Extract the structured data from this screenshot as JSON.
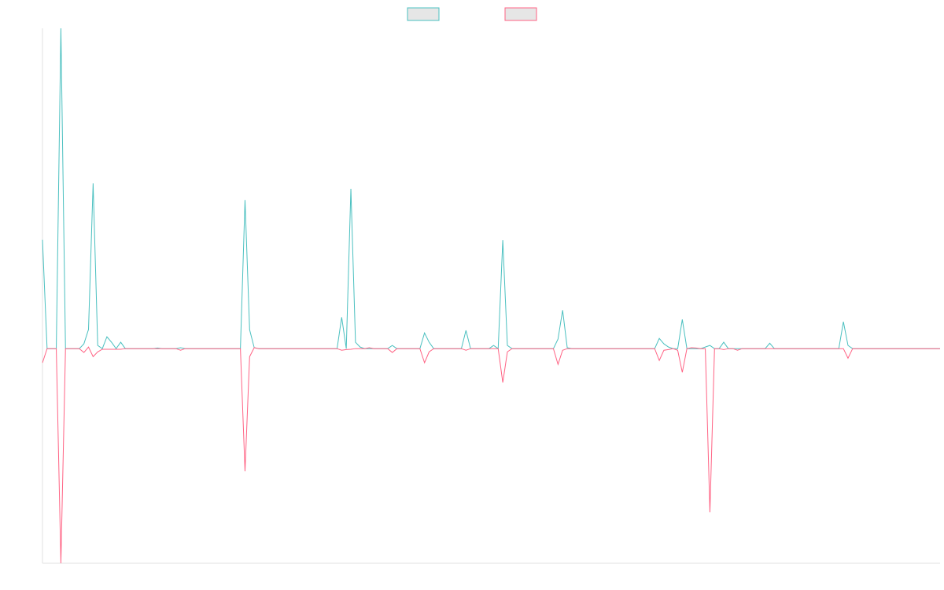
{
  "chart_data": {
    "type": "line",
    "legend": "top",
    "grid": false,
    "xlim": [
      0,
      195
    ],
    "ylim": [
      -67,
      100
    ],
    "x": [
      0,
      1,
      2,
      3,
      4,
      5,
      6,
      7,
      8,
      9,
      10,
      11,
      12,
      13,
      14,
      15,
      16,
      17,
      18,
      19,
      20,
      21,
      22,
      23,
      24,
      25,
      26,
      27,
      28,
      29,
      30,
      31,
      32,
      33,
      34,
      35,
      36,
      37,
      38,
      39,
      40,
      41,
      42,
      43,
      44,
      45,
      46,
      47,
      48,
      49,
      50,
      51,
      52,
      53,
      54,
      55,
      56,
      57,
      58,
      59,
      60,
      61,
      62,
      63,
      64,
      65,
      66,
      67,
      68,
      69,
      70,
      71,
      72,
      73,
      74,
      75,
      76,
      77,
      78,
      79,
      80,
      81,
      82,
      83,
      84,
      85,
      86,
      87,
      88,
      89,
      90,
      91,
      92,
      93,
      94,
      95,
      96,
      97,
      98,
      99,
      100,
      101,
      102,
      103,
      104,
      105,
      106,
      107,
      108,
      109,
      110,
      111,
      112,
      113,
      114,
      115,
      116,
      117,
      118,
      119,
      120,
      121,
      122,
      123,
      124,
      125,
      126,
      127,
      128,
      129,
      130,
      131,
      132,
      133,
      134,
      135,
      136,
      137,
      138,
      139,
      140,
      141,
      142,
      143,
      144,
      145,
      146,
      147,
      148,
      149,
      150,
      151,
      152,
      153,
      154,
      155,
      156,
      157,
      158,
      159,
      160,
      161,
      162,
      163,
      164,
      165,
      166,
      167,
      168,
      169,
      170,
      171,
      172,
      173,
      174,
      175,
      176,
      177,
      178,
      179,
      180,
      181,
      182,
      183,
      184,
      185,
      186,
      187,
      188,
      189,
      190,
      191,
      192,
      193,
      194,
      195
    ],
    "series": [
      {
        "color": "#4bc0c0",
        "values": [
          34,
          0,
          0,
          0,
          100,
          0,
          0,
          0,
          0,
          1.5,
          6,
          51.6,
          1,
          0,
          3.7,
          2,
          0,
          2,
          0,
          0,
          0,
          0,
          0,
          0,
          0,
          0.2,
          0,
          0,
          0,
          0,
          0.3,
          0,
          0,
          0,
          0,
          0,
          0,
          0,
          0,
          0,
          0,
          0,
          0,
          0,
          46.4,
          5.9,
          0.3,
          0,
          0,
          0,
          0,
          0,
          0,
          0,
          0,
          0,
          0,
          0,
          0,
          0,
          0,
          0,
          0,
          0,
          0,
          9.8,
          0,
          49.9,
          2,
          0.5,
          0,
          0,
          0,
          0,
          0,
          0,
          1,
          0,
          0,
          0,
          0,
          0,
          0,
          4.9,
          2,
          0,
          0,
          0,
          0,
          0,
          0,
          0,
          5.7,
          0,
          0,
          0,
          0,
          0,
          1,
          0,
          33.9,
          1,
          0,
          0,
          0,
          0,
          0,
          0,
          0,
          0,
          0,
          0,
          3,
          12,
          0.3,
          0,
          0,
          0,
          0,
          0,
          0,
          0,
          0,
          0,
          0,
          0,
          0,
          0,
          0,
          0,
          0,
          0,
          0,
          0,
          3.2,
          1.5,
          0.5,
          0,
          0,
          9.1,
          0,
          0,
          0,
          0,
          0.5,
          1,
          0,
          0,
          2,
          0,
          0,
          0,
          0,
          0,
          0,
          0,
          0,
          0,
          1.7,
          0,
          0,
          0,
          0,
          0,
          0,
          0,
          0,
          0,
          0,
          0,
          0,
          0,
          0,
          0,
          8.4,
          1,
          0,
          0,
          0,
          0,
          0,
          0,
          0,
          0,
          0,
          0,
          0,
          0,
          0,
          0,
          0,
          0,
          0,
          0,
          0,
          0
        ]
      },
      {
        "color": "#ff6384",
        "values": [
          -4.4,
          0,
          0,
          0,
          -67,
          0,
          0,
          0,
          0,
          -1.2,
          0.5,
          -2.5,
          -1,
          -0.2,
          -0.2,
          -0.2,
          -0.2,
          -0.2,
          0,
          0,
          0,
          0,
          0,
          0,
          0,
          0,
          0,
          0,
          0,
          0,
          -0.5,
          0,
          0,
          0,
          0,
          0,
          0,
          0,
          0,
          0,
          0,
          0,
          0,
          0,
          -38.3,
          -2.5,
          0.3,
          0,
          0,
          0,
          0,
          0,
          0,
          0,
          0,
          0,
          0,
          0,
          0,
          0,
          0,
          0,
          0,
          0,
          0,
          -0.5,
          -0.3,
          -0.2,
          0,
          0,
          0,
          0.3,
          0,
          0,
          0,
          0,
          -1.2,
          0,
          0,
          0,
          0,
          0,
          0,
          -4.4,
          -1,
          0,
          0,
          0,
          0,
          0,
          0,
          0,
          -0.5,
          0,
          0,
          0,
          0,
          0,
          0,
          0,
          -10.6,
          -1,
          0,
          0,
          0,
          0,
          0,
          0,
          0,
          0,
          0,
          0,
          -4.9,
          -0.5,
          0,
          0,
          0,
          0,
          0,
          0,
          0,
          0,
          0,
          0,
          0,
          0,
          0,
          0,
          0,
          0,
          0,
          0,
          0,
          0,
          -3.7,
          -0.5,
          -0.3,
          0,
          -0.5,
          -7.4,
          0,
          0.3,
          0.2,
          0,
          0,
          -51.1,
          0,
          0,
          -0.3,
          0,
          0,
          -0.5,
          0,
          0,
          0,
          0,
          0,
          0,
          0,
          0,
          0,
          0,
          0,
          0,
          0,
          0,
          0,
          0,
          0,
          0,
          0,
          0,
          0,
          0,
          0,
          -3,
          0,
          0,
          0,
          0,
          0,
          0,
          0,
          0,
          0,
          0,
          0,
          0,
          0,
          0,
          0,
          0,
          0,
          0,
          0,
          0
        ]
      }
    ]
  }
}
